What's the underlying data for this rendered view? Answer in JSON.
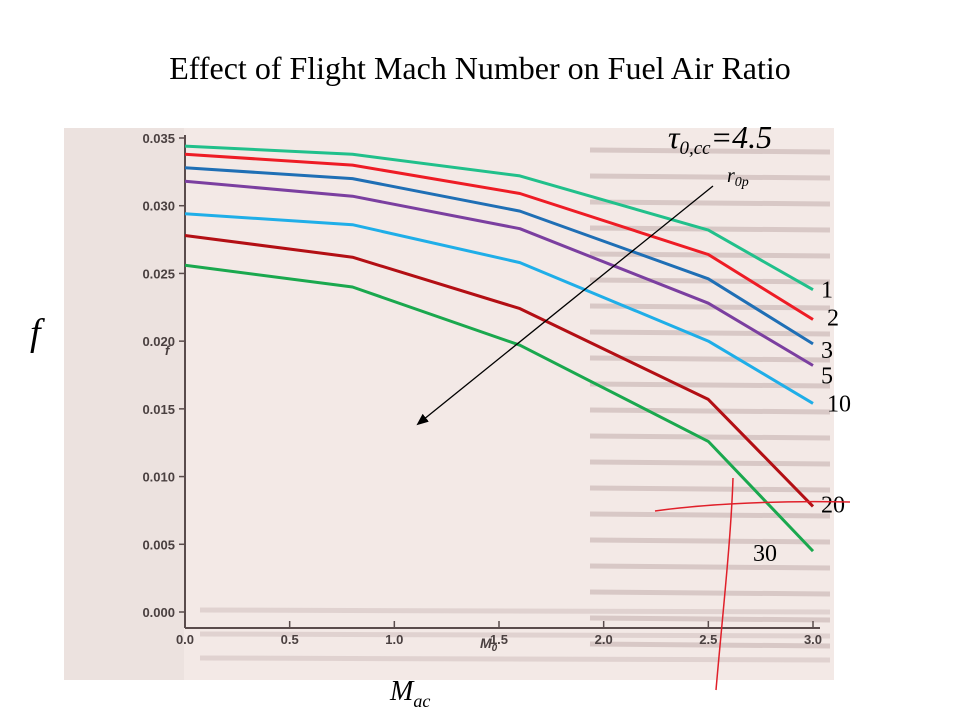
{
  "slide": {
    "title": "Effect of Flight Mach Number on Fuel Air Ratio"
  },
  "chart_data": {
    "type": "line",
    "title": "Effect of Flight Mach Number on Fuel Air Ratio",
    "xlabel": "M",
    "xlabel_sub": "ac",
    "ylabel": "f",
    "inner_xlabel": "M",
    "inner_xlabel_sub": "0",
    "inner_ylabel": "f",
    "parameter_text": "τ",
    "parameter_sub": "0,cc",
    "parameter_value": "=4.5",
    "arrow_label": "r",
    "arrow_label_sub": "0p",
    "xlim": [
      0,
      3.0
    ],
    "ylim": [
      0,
      0.035
    ],
    "x_ticks": [
      "0.0",
      "0.5",
      "1.0",
      "1.5",
      "2.0",
      "2.5",
      "3.0"
    ],
    "y_ticks": [
      "0.000",
      "0.005",
      "0.010",
      "0.015",
      "0.020",
      "0.025",
      "0.030",
      "0.035"
    ],
    "grid": false,
    "series": [
      {
        "name": "1",
        "color": "#21c08b",
        "x": [
          0,
          0.8,
          1.6,
          2.5,
          3.0
        ],
        "y": [
          0.0344,
          0.0338,
          0.0322,
          0.0282,
          0.0238
        ]
      },
      {
        "name": "2",
        "color": "#ee1c25",
        "x": [
          0,
          0.8,
          1.6,
          2.5,
          3.0
        ],
        "y": [
          0.0338,
          0.033,
          0.0309,
          0.0264,
          0.0216
        ]
      },
      {
        "name": "3",
        "color": "#1f6fb5",
        "x": [
          0,
          0.8,
          1.6,
          2.5,
          3.0
        ],
        "y": [
          0.0328,
          0.032,
          0.0296,
          0.0246,
          0.0198
        ]
      },
      {
        "name": "5",
        "color": "#7b3fa0",
        "x": [
          0,
          0.8,
          1.6,
          2.5,
          3.0
        ],
        "y": [
          0.0318,
          0.0307,
          0.0283,
          0.0228,
          0.0182
        ]
      },
      {
        "name": "10",
        "color": "#1faee8",
        "x": [
          0,
          0.8,
          1.6,
          2.5,
          3.0
        ],
        "y": [
          0.0294,
          0.0286,
          0.0258,
          0.02,
          0.0154
        ]
      },
      {
        "name": "20",
        "color": "#b30f14",
        "x": [
          0,
          0.8,
          1.6,
          2.5,
          3.0
        ],
        "y": [
          0.0278,
          0.0262,
          0.0224,
          0.0157,
          0.0078
        ]
      },
      {
        "name": "30",
        "color": "#1aa84e",
        "x": [
          0,
          0.8,
          1.6,
          2.5,
          3.0
        ],
        "y": [
          0.0256,
          0.024,
          0.0197,
          0.0126,
          0.0045
        ]
      }
    ],
    "curve_labels": [
      "1",
      "2",
      "3",
      "5",
      "10",
      "20",
      "30"
    ]
  }
}
